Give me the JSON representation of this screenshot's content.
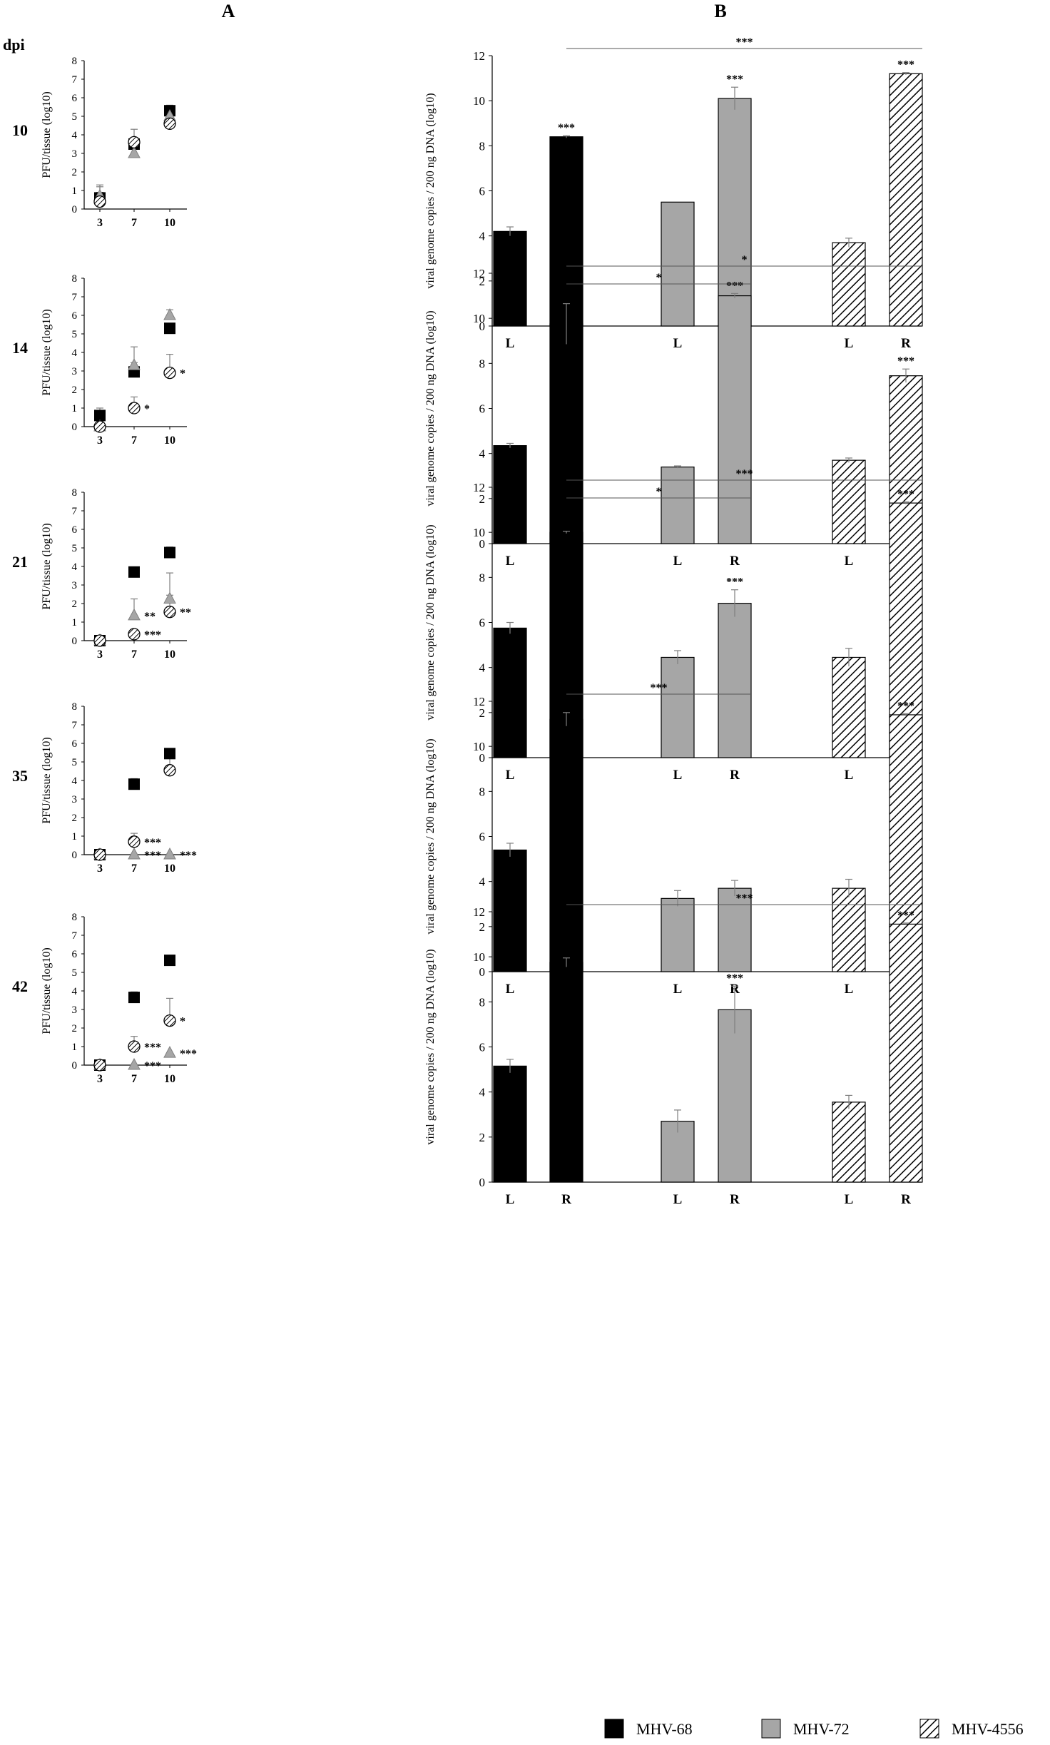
{
  "panel_labels": {
    "a": "A",
    "b": "B"
  },
  "row_header": "dpi",
  "legend": [
    {
      "name": "MHV-68",
      "style": "black"
    },
    {
      "name": "MHV-72",
      "style": "gray"
    },
    {
      "name": "MHV-4556",
      "style": "hatch"
    }
  ],
  "colors": {
    "mhv68": "#000000",
    "mhv72": "#a6a6a6",
    "mhv4556": "#ffffff",
    "axis": "#000000",
    "error": "#7f7f7f"
  },
  "chart_data": [
    {
      "type": "scatter",
      "panel": "A",
      "dpi": "10",
      "ylabel": "PFU/tissue (log10)",
      "ylim": [
        0,
        8
      ],
      "yticks": [
        "0",
        "1",
        "2",
        "3",
        "4",
        "5",
        "6",
        "7",
        "8"
      ],
      "categories": [
        "3",
        "7",
        "10"
      ],
      "series": [
        {
          "name": "MHV-68",
          "marker": "square",
          "values": [
            0.6,
            3.5,
            5.3
          ],
          "err": [
            0.7,
            0.3,
            0.3
          ],
          "sig": [
            "",
            "",
            ""
          ]
        },
        {
          "name": "MHV-72",
          "marker": "triangle",
          "values": [
            0.7,
            3.0,
            5.0
          ],
          "err": [
            0.5,
            0.8,
            0.3
          ],
          "sig": [
            "",
            "",
            ""
          ]
        },
        {
          "name": "MHV-4556",
          "marker": "circle-hatch",
          "values": [
            0.4,
            3.6,
            4.6
          ],
          "err": [
            0.5,
            0.7,
            0.9
          ],
          "sig": [
            "",
            "",
            ""
          ]
        }
      ]
    },
    {
      "type": "bar",
      "panel": "B",
      "dpi": "10",
      "ylabel": "viral genome copies / 200 ng DNA (log10)",
      "ylim": [
        0,
        12
      ],
      "yticks": [
        "0",
        "2",
        "4",
        "6",
        "8",
        "10",
        "12"
      ],
      "categories": [
        "L",
        "R",
        "L",
        "R",
        "L",
        "R"
      ],
      "values": [
        4.2,
        8.4,
        5.5,
        10.1,
        3.7,
        11.2
      ],
      "err": [
        0.2,
        0.05,
        0.0,
        0.5,
        0.2,
        0.05
      ],
      "series_of_bar": [
        "MHV-68",
        "MHV-68",
        "MHV-72",
        "MHV-72",
        "MHV-4556",
        "MHV-4556"
      ],
      "sig": [
        "",
        "***",
        "",
        "***",
        "",
        "***"
      ],
      "brackets": [
        {
          "from": 1,
          "to": 5,
          "label": "***"
        }
      ]
    },
    {
      "type": "scatter",
      "panel": "A",
      "dpi": "14",
      "ylabel": "PFU/tissue (log10)",
      "ylim": [
        0,
        8
      ],
      "yticks": [
        "0",
        "1",
        "2",
        "3",
        "4",
        "5",
        "6",
        "7",
        "8"
      ],
      "categories": [
        "3",
        "7",
        "10"
      ],
      "series": [
        {
          "name": "MHV-68",
          "marker": "square",
          "values": [
            0.6,
            2.95,
            5.3
          ],
          "err": [
            0.4,
            0.5,
            0.2
          ],
          "sig": [
            "",
            "",
            ""
          ]
        },
        {
          "name": "MHV-72",
          "marker": "triangle",
          "values": [
            0.0,
            3.3,
            6.0
          ],
          "err": [
            0.0,
            1.0,
            0.3
          ],
          "sig": [
            "",
            "",
            ""
          ]
        },
        {
          "name": "MHV-4556",
          "marker": "circle-hatch",
          "values": [
            0.0,
            1.0,
            2.9
          ],
          "err": [
            0.0,
            0.6,
            1.0
          ],
          "sig": [
            "",
            "*",
            "*"
          ]
        }
      ]
    },
    {
      "type": "bar",
      "panel": "B",
      "dpi": "14",
      "ylabel": "viral genome copies / 200 ng DNA (log10)",
      "ylim": [
        0,
        12
      ],
      "yticks": [
        "0",
        "2",
        "4",
        "6",
        "8",
        "10",
        "12"
      ],
      "categories": [
        "L",
        "R",
        "L",
        "R",
        "L",
        "R"
      ],
      "values": [
        4.35,
        9.75,
        3.4,
        11.0,
        3.7,
        7.45
      ],
      "err": [
        0.1,
        0.9,
        0.05,
        0.1,
        0.1,
        0.3
      ],
      "series_of_bar": [
        "MHV-68",
        "MHV-68",
        "MHV-72",
        "MHV-72",
        "MHV-4556",
        "MHV-4556"
      ],
      "sig": [
        "",
        "***",
        "",
        "***",
        "",
        "***"
      ],
      "brackets": [
        {
          "from": 1,
          "to": 3,
          "label": "*"
        },
        {
          "from": 1,
          "to": 5,
          "label": "*"
        }
      ]
    },
    {
      "type": "scatter",
      "panel": "A",
      "dpi": "21",
      "ylabel": "PFU/tissue (log10)",
      "ylim": [
        0,
        8
      ],
      "yticks": [
        "0",
        "1",
        "2",
        "3",
        "4",
        "5",
        "6",
        "7",
        "8"
      ],
      "categories": [
        "3",
        "7",
        "10"
      ],
      "series": [
        {
          "name": "MHV-68",
          "marker": "square",
          "values": [
            0.0,
            3.7,
            4.75
          ],
          "err": [
            0.0,
            0.0,
            0.3
          ],
          "sig": [
            "",
            "",
            ""
          ]
        },
        {
          "name": "MHV-72",
          "marker": "triangle",
          "values": [
            0.0,
            1.35,
            2.25
          ],
          "err": [
            0.0,
            0.9,
            1.4
          ],
          "sig": [
            "",
            "**",
            ""
          ]
        },
        {
          "name": "MHV-4556",
          "marker": "circle-hatch",
          "values": [
            0.0,
            0.35,
            1.55
          ],
          "err": [
            0.0,
            0.0,
            0.9
          ],
          "sig": [
            "",
            "***",
            "**"
          ]
        }
      ]
    },
    {
      "type": "bar",
      "panel": "B",
      "dpi": "21",
      "ylabel": "viral genome copies / 200 ng DNA (log10)",
      "ylim": [
        0,
        12
      ],
      "yticks": [
        "0",
        "2",
        "4",
        "6",
        "8",
        "10",
        "12"
      ],
      "categories": [
        "L",
        "R",
        "L",
        "R",
        "L",
        "R"
      ],
      "values": [
        5.75,
        10.0,
        4.45,
        6.85,
        4.45,
        11.3
      ],
      "err": [
        0.25,
        0.05,
        0.3,
        0.6,
        0.4,
        0.05
      ],
      "series_of_bar": [
        "MHV-68",
        "MHV-68",
        "MHV-72",
        "MHV-72",
        "MHV-4556",
        "MHV-4556"
      ],
      "sig": [
        "",
        "***",
        "",
        "***",
        "",
        "***"
      ],
      "brackets": [
        {
          "from": 1,
          "to": 3,
          "label": "*"
        },
        {
          "from": 1,
          "to": 5,
          "label": "***"
        }
      ]
    },
    {
      "type": "scatter",
      "panel": "A",
      "dpi": "35",
      "ylabel": "PFU/tissue (log10)",
      "ylim": [
        0,
        8
      ],
      "yticks": [
        "0",
        "1",
        "2",
        "3",
        "4",
        "5",
        "6",
        "7",
        "8"
      ],
      "categories": [
        "3",
        "7",
        "10"
      ],
      "series": [
        {
          "name": "MHV-68",
          "marker": "square",
          "values": [
            0.0,
            3.8,
            5.45
          ],
          "err": [
            0.0,
            0.3,
            0.0
          ],
          "sig": [
            "",
            "",
            ""
          ]
        },
        {
          "name": "MHV-72",
          "marker": "triangle",
          "values": [
            0.0,
            0.0,
            0.0
          ],
          "err": [
            0.0,
            0.0,
            0.0
          ],
          "sig": [
            "",
            "***",
            "***"
          ]
        },
        {
          "name": "MHV-4556",
          "marker": "circle-hatch",
          "values": [
            0.0,
            0.7,
            4.55
          ],
          "err": [
            0.0,
            0.45,
            0.9
          ],
          "sig": [
            "",
            "***",
            ""
          ]
        }
      ]
    },
    {
      "type": "bar",
      "panel": "B",
      "dpi": "35",
      "ylabel": "viral genome copies / 200 ng DNA (log10)",
      "ylim": [
        0,
        12
      ],
      "yticks": [
        "0",
        "2",
        "4",
        "6",
        "8",
        "10",
        "12"
      ],
      "categories": [
        "L",
        "R",
        "L",
        "R",
        "L",
        "R"
      ],
      "values": [
        5.4,
        11.2,
        3.25,
        3.7,
        3.7,
        11.4
      ],
      "err": [
        0.3,
        0.3,
        0.35,
        0.35,
        0.4,
        0.05
      ],
      "series_of_bar": [
        "MHV-68",
        "MHV-68",
        "MHV-72",
        "MHV-72",
        "MHV-4556",
        "MHV-4556"
      ],
      "sig": [
        "",
        "***",
        "",
        "",
        "",
        "***"
      ],
      "brackets": [
        {
          "from": 1,
          "to": 3,
          "label": "***"
        }
      ]
    },
    {
      "type": "scatter",
      "panel": "A",
      "dpi": "42",
      "ylabel": "PFU/tissue (log10)",
      "ylim": [
        0,
        8
      ],
      "yticks": [
        "0",
        "1",
        "2",
        "3",
        "4",
        "5",
        "6",
        "7",
        "8"
      ],
      "categories": [
        "3",
        "7",
        "10"
      ],
      "series": [
        {
          "name": "MHV-68",
          "marker": "square",
          "values": [
            0.0,
            3.65,
            5.65
          ],
          "err": [
            0.0,
            0.3,
            0.0
          ],
          "sig": [
            "",
            "",
            ""
          ]
        },
        {
          "name": "MHV-72",
          "marker": "triangle",
          "values": [
            0.0,
            0.0,
            0.65
          ],
          "err": [
            0.0,
            0.0,
            0.0
          ],
          "sig": [
            "",
            "***",
            "***"
          ]
        },
        {
          "name": "MHV-4556",
          "marker": "circle-hatch",
          "values": [
            0.0,
            1.0,
            2.4
          ],
          "err": [
            0.0,
            0.55,
            1.2
          ],
          "sig": [
            "",
            "***",
            "*"
          ]
        }
      ]
    },
    {
      "type": "bar",
      "panel": "B",
      "dpi": "42",
      "ylabel": "viral genome copies / 200 ng DNA (log10)",
      "ylim": [
        0,
        12
      ],
      "yticks": [
        "0",
        "2",
        "4",
        "6",
        "8",
        "10",
        "12"
      ],
      "categories": [
        "L",
        "R",
        "L",
        "R",
        "L",
        "R"
      ],
      "values": [
        5.15,
        9.75,
        2.7,
        7.65,
        3.55,
        11.45
      ],
      "err": [
        0.3,
        0.2,
        0.5,
        1.05,
        0.3,
        0.05
      ],
      "series_of_bar": [
        "MHV-68",
        "MHV-68",
        "MHV-72",
        "MHV-72",
        "MHV-4556",
        "MHV-4556"
      ],
      "sig": [
        "",
        "***",
        "",
        "***",
        "",
        "***"
      ],
      "brackets": [
        {
          "from": 1,
          "to": 5,
          "label": "***"
        }
      ]
    }
  ]
}
